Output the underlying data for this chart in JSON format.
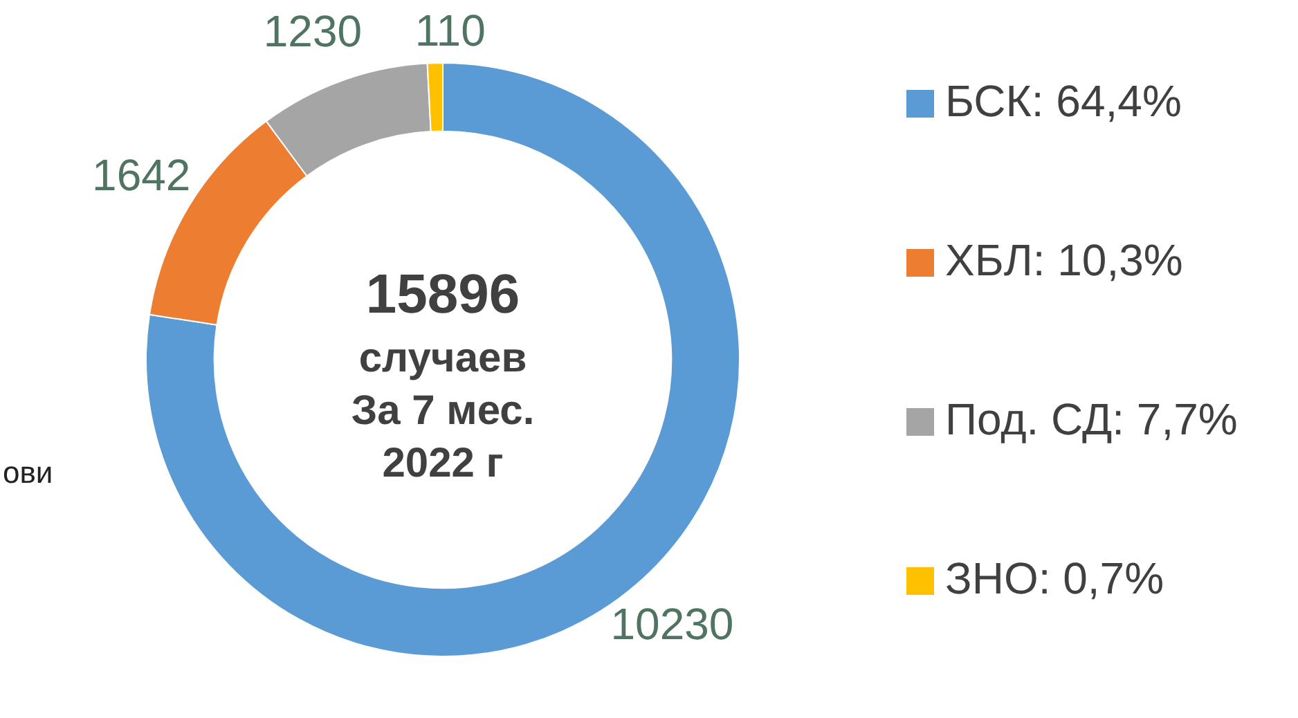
{
  "chart_data": {
    "type": "donut",
    "title": "15896",
    "subtitle": "случаев\nЗа 7 мес.\n2022 г",
    "categories": [
      "БСК: 64,4%",
      "ХБЛ: 10,3%",
      "Под. СД: 7,7%",
      "ЗНО: 0,7%"
    ],
    "values": [
      10230,
      1642,
      1230,
      110
    ],
    "colors": [
      "#5b9bd5",
      "#ed7d31",
      "#a5a5a5",
      "#ffc000"
    ],
    "data_labels": true,
    "legend": "right",
    "annotations": [
      "ови"
    ]
  }
}
